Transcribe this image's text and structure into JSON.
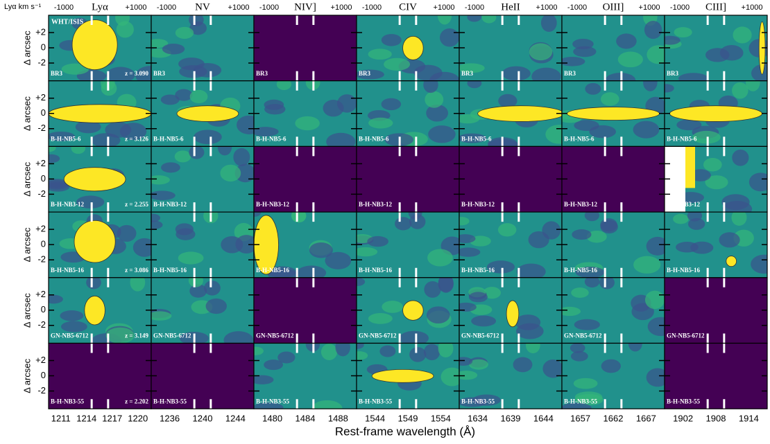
{
  "velocity_label": "Lyα km s⁻¹",
  "velocity_ticks": [
    "-1000",
    "+1000"
  ],
  "y_axis_label": "Δ arcsec",
  "y_ticks": [
    "+2",
    "0",
    "-2"
  ],
  "x_axis_label": "Rest-frame wavelength (Å)",
  "instrument": "WHT/ISIS",
  "columns": [
    {
      "line": "Lyα",
      "wavelengths": [
        1211,
        1214,
        1217,
        1220
      ]
    },
    {
      "line": "NV",
      "wavelengths": [
        1236,
        1240,
        1244
      ]
    },
    {
      "line": "NIV]",
      "wavelengths": [
        1480,
        1484,
        1488
      ]
    },
    {
      "line": "CIV",
      "wavelengths": [
        1544,
        1549,
        1554
      ]
    },
    {
      "line": "HeII",
      "wavelengths": [
        1634,
        1639,
        1644
      ]
    },
    {
      "line": "OIII]",
      "wavelengths": [
        1657,
        1662,
        1667
      ]
    },
    {
      "line": "CIII]",
      "wavelengths": [
        1902,
        1908,
        1914
      ]
    }
  ],
  "rows": [
    {
      "object": "BR3",
      "redshift": "z = 3.090"
    },
    {
      "object": "B-H-NB5-6",
      "redshift": "z = 3.126"
    },
    {
      "object": "B-H-NB3-12",
      "redshift": "z = 2.255"
    },
    {
      "object": "B-H-NB5-16",
      "redshift": "z = 3.086"
    },
    {
      "object": "GN-NB5-6712",
      "redshift": "z = 3.149"
    },
    {
      "object": "B-H-NB3-55",
      "redshift": "z = 2.202"
    }
  ]
}
